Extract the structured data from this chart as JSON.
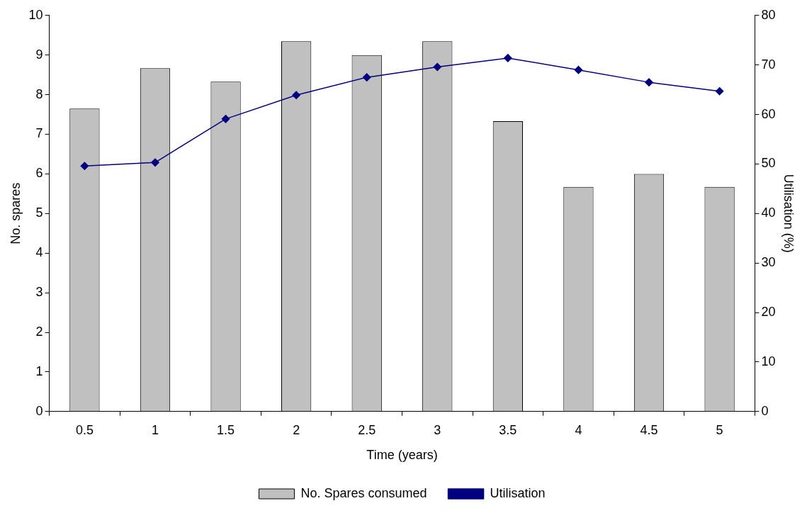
{
  "chart_data": {
    "type": "bar",
    "xlabel": "Time (years)",
    "ylabel": "No. spares",
    "y2label": "Utilisation (%)",
    "categories": [
      "0.5",
      "1",
      "1.5",
      "2",
      "2.5",
      "3",
      "3.5",
      "4",
      "4.5",
      "5"
    ],
    "series": [
      {
        "name": "No. Spares consumed",
        "color": "#c0c0c0",
        "values": [
          7.65,
          8.67,
          8.33,
          9.35,
          9.0,
          9.35,
          7.33,
          5.67,
          6.0,
          5.67
        ]
      },
      {
        "name": "Utilisation",
        "type": "line",
        "axis": "y2",
        "color": "#000080",
        "values": [
          49.6,
          50.3,
          59.1,
          63.9,
          67.5,
          69.6,
          71.4,
          69.0,
          66.5,
          64.7
        ]
      }
    ],
    "ylim": [
      0,
      10
    ],
    "yticks": [
      0,
      1,
      2,
      3,
      4,
      5,
      6,
      7,
      8,
      9,
      10
    ],
    "y2lim": [
      0,
      80
    ],
    "y2ticks": [
      0,
      10,
      20,
      30,
      40,
      50,
      60,
      70,
      80
    ],
    "grid": false,
    "legend": "bottom",
    "marker": "diamond",
    "line_style": "solid"
  }
}
